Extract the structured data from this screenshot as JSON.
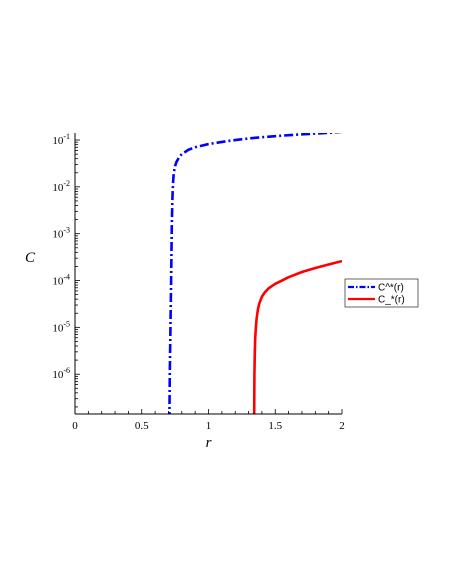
{
  "chart_data": {
    "type": "line",
    "title": "",
    "xlabel": "r",
    "ylabel": "C",
    "xscale": "linear",
    "yscale": "log",
    "xlim": [
      0,
      2
    ],
    "ylim_log10": [
      -6.85,
      -0.85
    ],
    "grid": false,
    "legend_position": "right",
    "x_ticks": [
      0,
      0.5,
      1,
      1.5,
      2
    ],
    "x_tick_labels": [
      "0",
      "0.5",
      "1",
      "1.5",
      "2"
    ],
    "y_ticks_log10": [
      -6,
      -5,
      -4,
      -3,
      -2,
      -1
    ],
    "y_tick_base": "10",
    "y_tick_exponents": [
      "-6",
      "-5",
      "-4",
      "-3",
      "-2",
      "-1"
    ],
    "series": [
      {
        "name": "C^*(r)",
        "color": "#0000ff",
        "style": "dashdot",
        "x": [
          0.707,
          0.71,
          0.715,
          0.72,
          0.725,
          0.73,
          0.735,
          0.74,
          0.75,
          0.76,
          0.78,
          0.8,
          0.85,
          0.9,
          1.0,
          1.1,
          1.2,
          1.3,
          1.4,
          1.5,
          1.6,
          1.7,
          1.8,
          1.9,
          2.0
        ],
        "y": [
          1e-07,
          1e-06,
          1e-05,
          0.0001,
          0.0015,
          0.006,
          0.013,
          0.02,
          0.028,
          0.034,
          0.043,
          0.05,
          0.062,
          0.07,
          0.082,
          0.091,
          0.1,
          0.108,
          0.115,
          0.121,
          0.127,
          0.132,
          0.137,
          0.142,
          0.15
        ]
      },
      {
        "name": "C_*(r)",
        "color": "#ff0000",
        "style": "solid",
        "x": [
          1.342,
          1.344,
          1.347,
          1.35,
          1.355,
          1.36,
          1.37,
          1.38,
          1.4,
          1.42,
          1.45,
          1.5,
          1.55,
          1.6,
          1.7,
          1.8,
          1.9,
          2.0
        ],
        "y": [
          1e-07,
          1e-06,
          3e-06,
          6e-06,
          1e-05,
          1.5e-05,
          2.4e-05,
          3.2e-05,
          4.5e-05,
          5.5e-05,
          6.8e-05,
          8.5e-05,
          0.0001,
          0.000118,
          0.000152,
          0.000185,
          0.00022,
          0.00026
        ]
      }
    ]
  }
}
